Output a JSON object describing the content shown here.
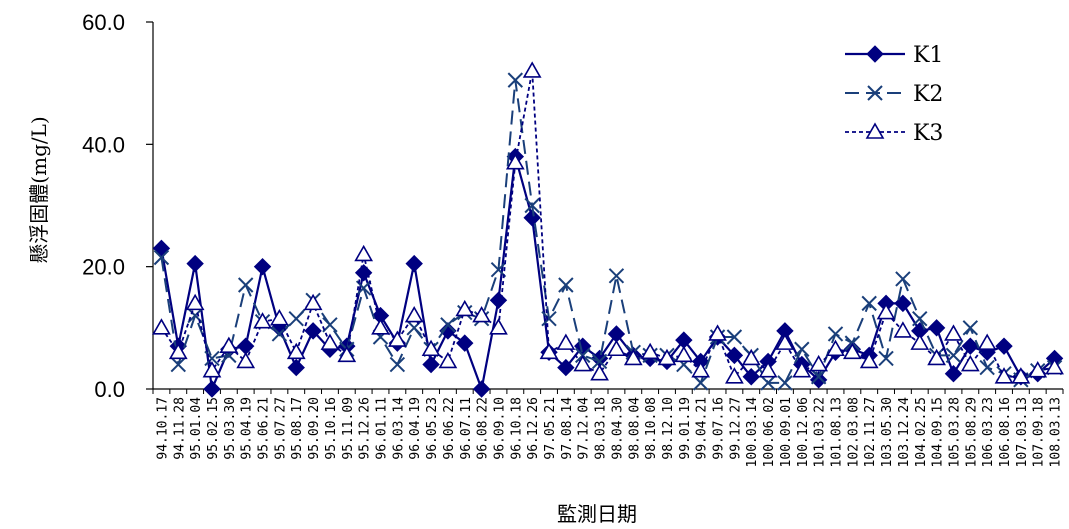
{
  "chart_data": {
    "type": "line",
    "title": "",
    "xlabel": "監測日期",
    "ylabel": "懸浮固體(mg/L)",
    "ylim": [
      0,
      60
    ],
    "yticks": [
      "0.0",
      "20.0",
      "40.0",
      "60.0"
    ],
    "grid": false,
    "legend_position": "top-right",
    "categories": [
      "94.10.17",
      "94.11.28",
      "95.01.04",
      "95.02.15",
      "95.03.30",
      "95.04.19",
      "95.06.21",
      "95.07.27",
      "95.08.17",
      "95.09.20",
      "95.10.16",
      "95.11.09",
      "95.12.26",
      "96.01.11",
      "96.03.14",
      "96.04.19",
      "96.05.23",
      "96.06.22",
      "96.07.11",
      "96.08.22",
      "96.09.10",
      "96.10.18",
      "96.12.26",
      "97.05.21",
      "97.08.14",
      "97.12.04",
      "98.03.18",
      "98.04.30",
      "98.08.04",
      "98.10.08",
      "98.12.10",
      "99.01.19",
      "99.04.21",
      "99.07.16",
      "99.12.27",
      "100.03.14",
      "100.06.02",
      "100.09.01",
      "100.12.06",
      "101.03.22",
      "101.08.13",
      "102.03.08",
      "102.11.27",
      "103.05.30",
      "103.12.24",
      "104.02.25",
      "104.09.15",
      "105.03.28",
      "105.08.29",
      "106.03.23",
      "106.08.16",
      "107.03.13",
      "107.09.18",
      "108.03.13"
    ],
    "series": [
      {
        "name": "K1",
        "color": "#000080",
        "values": [
          23,
          7,
          20.5,
          0,
          6.5,
          7,
          20,
          10,
          3.5,
          9.5,
          6.5,
          7,
          19,
          12,
          7.5,
          20.5,
          4,
          9.5,
          7.5,
          0,
          14.5,
          38,
          28,
          6,
          3.5,
          7,
          5,
          9,
          5.5,
          5,
          4.5,
          8,
          4.5,
          8.5,
          5.5,
          2,
          4.5,
          9.5,
          4,
          1.5,
          6,
          6.5,
          5.5,
          14,
          14,
          9.5,
          10,
          2.5,
          7,
          6,
          7,
          2,
          2.5,
          5
        ]
      },
      {
        "name": "K2",
        "color": "#1a3f7a",
        "values": [
          21.5,
          4,
          12,
          5,
          5.5,
          17,
          11,
          9,
          11.5,
          14.5,
          10.5,
          6.5,
          16.5,
          8.5,
          4,
          10,
          6.5,
          10.5,
          12.5,
          11.5,
          19.5,
          50.5,
          30,
          11.5,
          17,
          5.5,
          4.5,
          18.5,
          6,
          5.5,
          5.5,
          4,
          1,
          8.5,
          8.5,
          5.5,
          1,
          1,
          6.5,
          2,
          9,
          7.5,
          14,
          5,
          18,
          11.5,
          5.5,
          5.5,
          10,
          3.5,
          2.5,
          1.5,
          3,
          3.5
        ]
      },
      {
        "name": "K3",
        "color": "#000080",
        "values": [
          10,
          6,
          14,
          3,
          7,
          4.5,
          11,
          11.5,
          6,
          14,
          7.5,
          5.5,
          22,
          10,
          8,
          12,
          6.5,
          4.5,
          13,
          12,
          10,
          37,
          52,
          6,
          7.5,
          4,
          2.5,
          6.5,
          5,
          6,
          5,
          5.5,
          3,
          9,
          2,
          5,
          3,
          7.5,
          3,
          4,
          6.5,
          6,
          4.5,
          12.5,
          9.5,
          7.5,
          5,
          9,
          4,
          7.5,
          2,
          2,
          3,
          3.5
        ]
      }
    ]
  }
}
